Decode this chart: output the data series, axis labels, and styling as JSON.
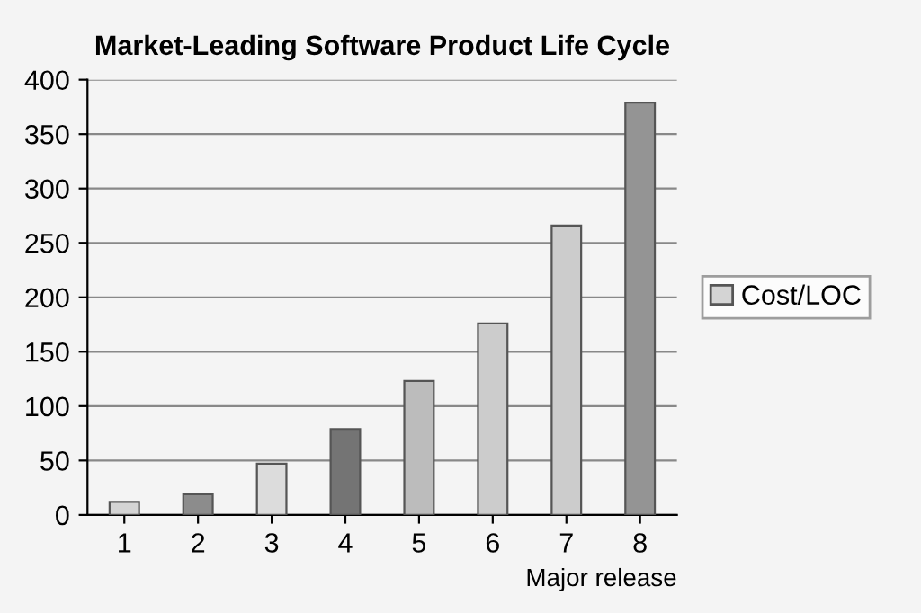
{
  "chart_data": {
    "type": "bar",
    "title": "Market-Leading Software Product Life Cycle",
    "xlabel": "Major release",
    "categories": [
      "1",
      "2",
      "3",
      "4",
      "5",
      "6",
      "7",
      "8"
    ],
    "series": [
      {
        "name": "Cost/LOC",
        "colors": [
          "#d4d4d4",
          "#8c8c8c",
          "#dcdcdc",
          "#747474",
          "#bcbcbc",
          "#cccccc",
          "#cccccc",
          "#949494"
        ],
        "values": [
          12,
          19,
          47,
          79,
          123,
          176,
          266,
          379
        ]
      }
    ],
    "ylim": [
      0,
      400
    ],
    "yticks": [
      0,
      50,
      100,
      150,
      200,
      250,
      300,
      350,
      400
    ],
    "grid": "y",
    "legend": "right"
  }
}
